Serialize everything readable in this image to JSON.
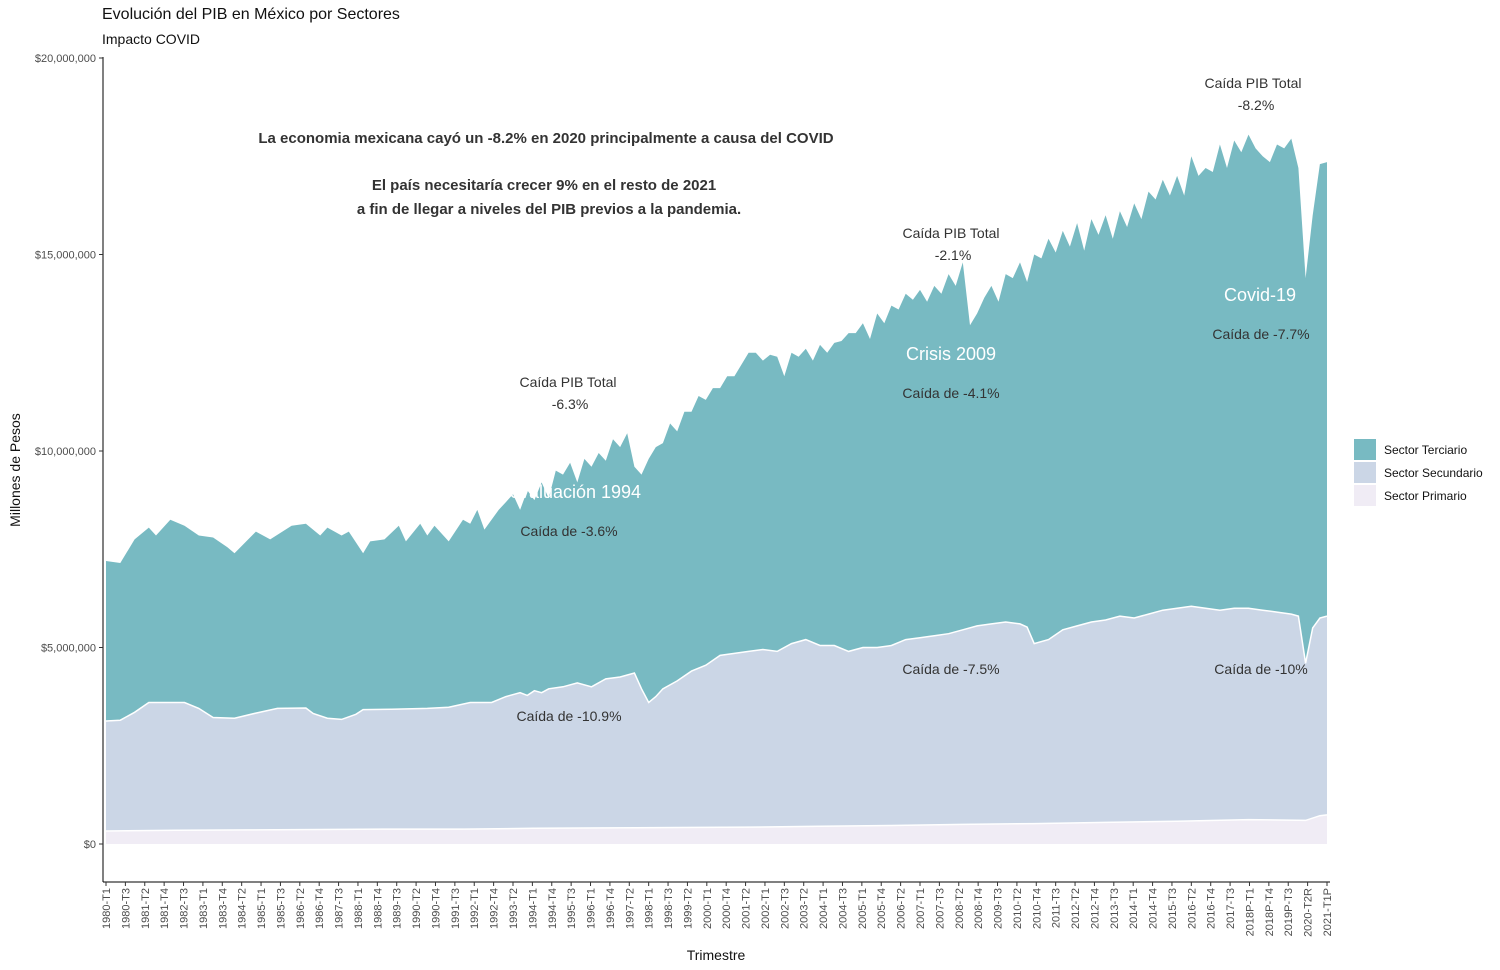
{
  "title": "Evolución del PIB en México por Sectores",
  "subtitle": "Impacto COVID",
  "chart_data": {
    "type": "area",
    "stacked": true,
    "xlabel": "Trimestre",
    "ylabel": "Millones de Pesos",
    "ylim": [
      0,
      20000000
    ],
    "yticks": [
      "$0",
      "$5,000,000",
      "$10,000,000",
      "$15,000,000",
      "$20,000,000"
    ],
    "yticks_values": [
      0,
      5000000,
      10000000,
      15000000,
      20000000
    ],
    "xtick_labels": [
      "1980-T1",
      "1980-T3",
      "1981-T2",
      "1981-T4",
      "1982-T3",
      "1983-T1",
      "1983-T4",
      "1984-T2",
      "1985-T1",
      "1985-T3",
      "1986-T2",
      "1986-T4",
      "1987-T3",
      "1988-T1",
      "1988-T4",
      "1989-T3",
      "1990-T2",
      "1990-T4",
      "1991-T3",
      "1992-T1",
      "1992-T4",
      "1993-T2",
      "1994-T1",
      "1994-T4",
      "1995-T3",
      "1996-T1",
      "1996-T4",
      "1997-T2",
      "1998-T1",
      "1998-T3",
      "1999-T2",
      "2000-T1",
      "2000-T4",
      "2001-T2",
      "2002-T1",
      "2002-T3",
      "2003-T2",
      "2004-T1",
      "2004-T3",
      "2005-T1",
      "2005-T4",
      "2006-T2",
      "2007-T1",
      "2007-T3",
      "2008-T2",
      "2008-T4",
      "2009-T3",
      "2010-T2",
      "2010-T4",
      "2011-T3",
      "2012-T2",
      "2012-T4",
      "2013-T3",
      "2014-T1",
      "2014-T4",
      "2015-T3",
      "2016-T2",
      "2016-T4",
      "2017-T3",
      "2018P-T1",
      "2018P-T4",
      "2019P-T3",
      "2020-T2R",
      "2021-T1P"
    ],
    "legend_position": "right",
    "series": [
      {
        "name": "Sector Terciario",
        "color": "#78BAC2",
        "total_points": [
          [
            0,
            7200000
          ],
          [
            2,
            7150000
          ],
          [
            4,
            7750000
          ],
          [
            6,
            8050000
          ],
          [
            7,
            7850000
          ],
          [
            9,
            8250000
          ],
          [
            11,
            8100000
          ],
          [
            13,
            7850000
          ],
          [
            15,
            7800000
          ],
          [
            17,
            7550000
          ],
          [
            18,
            7400000
          ],
          [
            21,
            7950000
          ],
          [
            23,
            7750000
          ],
          [
            26,
            8100000
          ],
          [
            28,
            8150000
          ],
          [
            30,
            7850000
          ],
          [
            31,
            8050000
          ],
          [
            33,
            7850000
          ],
          [
            34,
            7950000
          ],
          [
            36,
            7400000
          ],
          [
            37,
            7700000
          ],
          [
            39,
            7750000
          ],
          [
            41,
            8100000
          ],
          [
            42,
            7700000
          ],
          [
            44,
            8150000
          ],
          [
            45,
            7850000
          ],
          [
            46,
            8100000
          ],
          [
            48,
            7700000
          ],
          [
            50,
            8250000
          ],
          [
            51,
            8150000
          ],
          [
            52,
            8500000
          ],
          [
            53,
            8000000
          ],
          [
            55,
            8500000
          ],
          [
            56,
            8700000
          ],
          [
            57,
            8900000
          ],
          [
            58,
            8500000
          ],
          [
            59,
            9000000
          ],
          [
            60,
            8750000
          ],
          [
            61,
            9200000
          ],
          [
            62,
            8800000
          ],
          [
            63,
            9500000
          ],
          [
            64,
            9400000
          ],
          [
            65,
            9700000
          ],
          [
            66,
            9200000
          ],
          [
            67,
            9800000
          ],
          [
            68,
            9600000
          ],
          [
            69,
            9950000
          ],
          [
            70,
            9750000
          ],
          [
            71,
            10300000
          ],
          [
            72,
            10100000
          ],
          [
            73,
            10450000
          ],
          [
            74,
            9600000
          ],
          [
            75,
            9400000
          ],
          [
            76,
            9800000
          ],
          [
            77,
            10100000
          ],
          [
            78,
            10200000
          ],
          [
            79,
            10700000
          ],
          [
            80,
            10500000
          ],
          [
            81,
            11000000
          ],
          [
            82,
            11000000
          ],
          [
            83,
            11400000
          ],
          [
            84,
            11300000
          ],
          [
            85,
            11600000
          ],
          [
            86,
            11600000
          ],
          [
            87,
            11900000
          ],
          [
            88,
            11900000
          ],
          [
            89,
            12200000
          ],
          [
            90,
            12500000
          ],
          [
            91,
            12500000
          ],
          [
            92,
            12300000
          ],
          [
            93,
            12450000
          ],
          [
            94,
            12400000
          ],
          [
            95,
            11900000
          ],
          [
            96,
            12500000
          ],
          [
            97,
            12400000
          ],
          [
            98,
            12600000
          ],
          [
            99,
            12300000
          ],
          [
            100,
            12700000
          ],
          [
            101,
            12500000
          ],
          [
            102,
            12750000
          ],
          [
            103,
            12800000
          ],
          [
            104,
            13000000
          ],
          [
            105,
            13000000
          ],
          [
            106,
            13250000
          ],
          [
            107,
            12850000
          ],
          [
            108,
            13500000
          ],
          [
            109,
            13250000
          ],
          [
            110,
            13700000
          ],
          [
            111,
            13600000
          ],
          [
            112,
            14000000
          ],
          [
            113,
            13850000
          ],
          [
            114,
            14100000
          ],
          [
            115,
            13800000
          ],
          [
            116,
            14200000
          ],
          [
            117,
            14000000
          ],
          [
            118,
            14500000
          ],
          [
            119,
            14200000
          ],
          [
            120,
            14800000
          ],
          [
            121,
            13200000
          ],
          [
            122,
            13500000
          ],
          [
            123,
            13900000
          ],
          [
            124,
            14200000
          ],
          [
            125,
            13800000
          ],
          [
            126,
            14500000
          ],
          [
            127,
            14400000
          ],
          [
            128,
            14800000
          ],
          [
            129,
            14300000
          ],
          [
            130,
            15000000
          ],
          [
            131,
            14900000
          ],
          [
            132,
            15400000
          ],
          [
            133,
            15050000
          ],
          [
            134,
            15600000
          ],
          [
            135,
            15200000
          ],
          [
            136,
            15800000
          ],
          [
            137,
            15100000
          ],
          [
            138,
            15900000
          ],
          [
            139,
            15500000
          ],
          [
            140,
            16000000
          ],
          [
            141,
            15400000
          ],
          [
            142,
            16100000
          ],
          [
            143,
            15700000
          ],
          [
            144,
            16300000
          ],
          [
            145,
            15900000
          ],
          [
            146,
            16600000
          ],
          [
            147,
            16400000
          ],
          [
            148,
            16900000
          ],
          [
            149,
            16500000
          ],
          [
            150,
            17000000
          ],
          [
            151,
            16500000
          ],
          [
            152,
            17500000
          ],
          [
            153,
            17000000
          ],
          [
            154,
            17200000
          ],
          [
            155,
            17100000
          ],
          [
            156,
            17800000
          ],
          [
            157,
            17200000
          ],
          [
            158,
            17900000
          ],
          [
            159,
            17600000
          ],
          [
            160,
            18050000
          ],
          [
            161,
            17700000
          ],
          [
            162,
            17500000
          ],
          [
            163,
            17350000
          ],
          [
            164,
            17800000
          ],
          [
            165,
            17700000
          ],
          [
            166,
            17950000
          ],
          [
            167,
            17200000
          ],
          [
            168,
            14400000
          ],
          [
            169,
            16000000
          ],
          [
            170,
            17300000
          ],
          [
            171,
            17350000
          ]
        ]
      },
      {
        "name": "Sector Secundario",
        "color": "#CBD6E6",
        "total_points": [
          [
            0,
            3130000
          ],
          [
            2,
            3150000
          ],
          [
            4,
            3350000
          ],
          [
            6,
            3600000
          ],
          [
            9,
            3600000
          ],
          [
            11,
            3600000
          ],
          [
            13,
            3450000
          ],
          [
            15,
            3220000
          ],
          [
            18,
            3200000
          ],
          [
            21,
            3330000
          ],
          [
            24,
            3450000
          ],
          [
            28,
            3460000
          ],
          [
            29,
            3320000
          ],
          [
            31,
            3200000
          ],
          [
            33,
            3170000
          ],
          [
            35,
            3300000
          ],
          [
            36,
            3420000
          ],
          [
            40,
            3430000
          ],
          [
            45,
            3450000
          ],
          [
            48,
            3480000
          ],
          [
            51,
            3600000
          ],
          [
            54,
            3600000
          ],
          [
            56,
            3750000
          ],
          [
            58,
            3850000
          ],
          [
            59,
            3780000
          ],
          [
            60,
            3900000
          ],
          [
            61,
            3850000
          ],
          [
            62,
            3950000
          ],
          [
            64,
            4000000
          ],
          [
            66,
            4100000
          ],
          [
            68,
            4000000
          ],
          [
            70,
            4200000
          ],
          [
            72,
            4250000
          ],
          [
            74,
            4350000
          ],
          [
            75,
            3950000
          ],
          [
            76,
            3600000
          ],
          [
            77,
            3750000
          ],
          [
            78,
            3950000
          ],
          [
            80,
            4150000
          ],
          [
            82,
            4400000
          ],
          [
            84,
            4550000
          ],
          [
            86,
            4800000
          ],
          [
            88,
            4850000
          ],
          [
            90,
            4900000
          ],
          [
            92,
            4950000
          ],
          [
            94,
            4900000
          ],
          [
            96,
            5100000
          ],
          [
            98,
            5200000
          ],
          [
            100,
            5050000
          ],
          [
            102,
            5050000
          ],
          [
            104,
            4900000
          ],
          [
            106,
            5000000
          ],
          [
            108,
            5000000
          ],
          [
            110,
            5050000
          ],
          [
            112,
            5200000
          ],
          [
            114,
            5250000
          ],
          [
            116,
            5300000
          ],
          [
            118,
            5350000
          ],
          [
            120,
            5450000
          ],
          [
            122,
            5550000
          ],
          [
            124,
            5600000
          ],
          [
            126,
            5650000
          ],
          [
            128,
            5600000
          ],
          [
            129,
            5520000
          ],
          [
            130,
            5100000
          ],
          [
            132,
            5200000
          ],
          [
            134,
            5450000
          ],
          [
            136,
            5550000
          ],
          [
            138,
            5650000
          ],
          [
            140,
            5700000
          ],
          [
            142,
            5800000
          ],
          [
            144,
            5750000
          ],
          [
            146,
            5850000
          ],
          [
            148,
            5950000
          ],
          [
            150,
            6000000
          ],
          [
            152,
            6050000
          ],
          [
            154,
            6000000
          ],
          [
            156,
            5950000
          ],
          [
            158,
            6000000
          ],
          [
            160,
            6000000
          ],
          [
            162,
            5950000
          ],
          [
            164,
            5900000
          ],
          [
            166,
            5850000
          ],
          [
            167,
            5800000
          ],
          [
            168,
            4600000
          ],
          [
            169,
            5500000
          ],
          [
            170,
            5750000
          ],
          [
            171,
            5800000
          ]
        ]
      },
      {
        "name": "Sector Primario",
        "color": "#F0ECF5",
        "total_points": [
          [
            0,
            330000
          ],
          [
            10,
            350000
          ],
          [
            20,
            360000
          ],
          [
            30,
            370000
          ],
          [
            40,
            380000
          ],
          [
            50,
            380000
          ],
          [
            60,
            400000
          ],
          [
            70,
            410000
          ],
          [
            80,
            420000
          ],
          [
            90,
            430000
          ],
          [
            100,
            450000
          ],
          [
            110,
            470000
          ],
          [
            120,
            500000
          ],
          [
            130,
            520000
          ],
          [
            140,
            550000
          ],
          [
            150,
            580000
          ],
          [
            160,
            620000
          ],
          [
            168,
            600000
          ],
          [
            170,
            720000
          ],
          [
            171,
            740000
          ]
        ]
      }
    ],
    "annotations": {
      "top_text_line1": "La economia mexicana cayó un -8.2% en 2020 principalmente a causa del COVID",
      "top_text_line2": "El país necesitaría crecer 9% en el resto de 2021",
      "top_text_line3": "a fin de llegar a niveles del PIB previos a la pandemia.",
      "caida_total_label": "Caída PIB Total",
      "caida_1994_total": "-6.3%",
      "caida_2009_total": "-2.1%",
      "caida_2020_total": "-8.2%",
      "event_1994": "Devaluación 1994",
      "event_2009": "Crisis 2009",
      "event_2020": "Covid-19",
      "terciario_1994": "Caída de -3.6%",
      "terciario_2009": "Caída de -4.1%",
      "terciario_2020": "Caída de -7.7%",
      "secundario_1994": "Caída de -10.9%",
      "secundario_2009": "Caída de -7.5%",
      "secundario_2020": "Caída de -10%"
    }
  }
}
